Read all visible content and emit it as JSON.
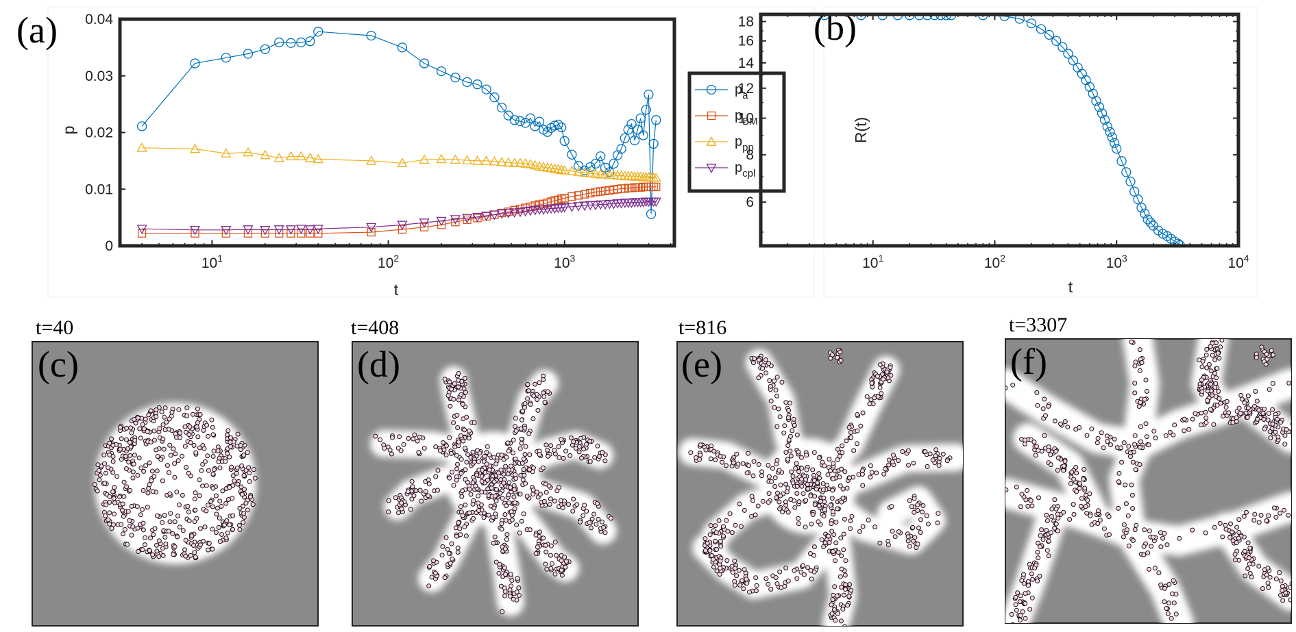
{
  "panel_labels": [
    "(a)",
    "(b)",
    "(c)",
    "(d)",
    "(e)",
    "(f)"
  ],
  "snapshots": [
    {
      "label": "t=40",
      "type": "blob"
    },
    {
      "label": "t=408",
      "type": "arms"
    },
    {
      "label": "t=816",
      "type": "network"
    },
    {
      "label": "t=3307",
      "type": "coarsened"
    }
  ],
  "colors": {
    "p_a": "#0072BD",
    "p_BM": "#D95319",
    "p_pp": "#EDB120",
    "p_cpl": "#7E2F8E",
    "background_gray": "#8a8a8a",
    "particle_fill": "#f3d6e4"
  },
  "chart_data": [
    {
      "type": "line",
      "id": "a",
      "xscale": "log",
      "xlim": [
        3,
        4200
      ],
      "ylim": [
        0,
        0.04
      ],
      "xlabel": "t",
      "ylabel": "p",
      "xtick_labels": [
        {
          "base": "10",
          "exp": "1"
        },
        {
          "base": "10",
          "exp": "2"
        },
        {
          "base": "10",
          "exp": "3"
        }
      ],
      "ytick_labels": [
        "0",
        "0.01",
        "0.02",
        "0.03",
        "0.04"
      ],
      "yticks": [
        0,
        0.01,
        0.02,
        0.03,
        0.04
      ],
      "legend_position": "outside-right",
      "legend": [
        {
          "base": "p",
          "sub": "a"
        },
        {
          "base": "p",
          "sub": "BM"
        },
        {
          "base": "p",
          "sub": "pp"
        },
        {
          "base": "p",
          "sub": "cpl"
        }
      ],
      "series": [
        {
          "name": "p_a",
          "marker": "circle",
          "x": [
            4,
            8,
            12,
            16,
            20,
            24,
            28,
            32,
            36,
            40,
            80,
            120,
            160,
            200,
            240,
            280,
            320,
            360,
            400,
            440,
            480,
            520,
            560,
            600,
            640,
            680,
            720,
            760,
            800,
            840,
            880,
            920,
            960,
            1000,
            1100,
            1200,
            1300,
            1400,
            1500,
            1600,
            1700,
            1800,
            1900,
            2000,
            2100,
            2200,
            2300,
            2400,
            2500,
            2600,
            2700,
            2800,
            2900,
            3000,
            3100,
            3200,
            3307
          ],
          "y": [
            0.0211,
            0.0322,
            0.0332,
            0.0339,
            0.0347,
            0.0359,
            0.0358,
            0.0359,
            0.0361,
            0.0378,
            0.0371,
            0.035,
            0.0322,
            0.0308,
            0.0297,
            0.0289,
            0.0285,
            0.0276,
            0.0262,
            0.0244,
            0.023,
            0.0222,
            0.022,
            0.0217,
            0.0225,
            0.0211,
            0.0219,
            0.0205,
            0.0201,
            0.0208,
            0.0212,
            0.0214,
            0.0209,
            0.0185,
            0.0161,
            0.0141,
            0.0133,
            0.0139,
            0.0145,
            0.0158,
            0.0138,
            0.013,
            0.0145,
            0.016,
            0.0171,
            0.019,
            0.0205,
            0.0215,
            0.0186,
            0.0205,
            0.0225,
            0.0195,
            0.024,
            0.0267,
            0.0056,
            0.018,
            0.0222
          ]
        },
        {
          "name": "p_BM",
          "marker": "square",
          "x": [
            4,
            8,
            12,
            16,
            20,
            24,
            28,
            32,
            36,
            40,
            80,
            120,
            160,
            200,
            240,
            280,
            320,
            360,
            400,
            440,
            480,
            520,
            560,
            600,
            640,
            680,
            720,
            760,
            800,
            840,
            880,
            920,
            960,
            1000,
            1100,
            1200,
            1300,
            1400,
            1500,
            1600,
            1700,
            1800,
            1900,
            2000,
            2100,
            2200,
            2300,
            2400,
            2500,
            2600,
            2700,
            2800,
            2900,
            3000,
            3100,
            3200,
            3307
          ],
          "y": [
            0.0022,
            0.0022,
            0.0022,
            0.0022,
            0.0022,
            0.0022,
            0.0022,
            0.0022,
            0.0022,
            0.0022,
            0.0024,
            0.0029,
            0.0033,
            0.0037,
            0.0042,
            0.0046,
            0.0049,
            0.0052,
            0.0055,
            0.0058,
            0.006,
            0.0063,
            0.0065,
            0.0067,
            0.0069,
            0.0071,
            0.0073,
            0.0074,
            0.0076,
            0.0078,
            0.008,
            0.0081,
            0.0083,
            0.0084,
            0.0087,
            0.0089,
            0.0091,
            0.0093,
            0.0095,
            0.0096,
            0.0097,
            0.0098,
            0.0099,
            0.01,
            0.0101,
            0.0101,
            0.0102,
            0.0102,
            0.0103,
            0.0103,
            0.0103,
            0.0104,
            0.0104,
            0.0104,
            0.0104,
            0.0104,
            0.0104
          ]
        },
        {
          "name": "p_pp",
          "marker": "triangle-up",
          "x": [
            4,
            8,
            12,
            16,
            20,
            24,
            28,
            32,
            36,
            40,
            80,
            120,
            160,
            200,
            240,
            280,
            320,
            360,
            400,
            440,
            480,
            520,
            560,
            600,
            640,
            680,
            720,
            760,
            800,
            840,
            880,
            920,
            960,
            1000,
            1100,
            1200,
            1300,
            1400,
            1500,
            1600,
            1700,
            1800,
            1900,
            2000,
            2100,
            2200,
            2300,
            2400,
            2500,
            2600,
            2700,
            2800,
            2900,
            3000,
            3100,
            3200,
            3307
          ],
          "y": [
            0.0173,
            0.0171,
            0.0163,
            0.0165,
            0.016,
            0.0155,
            0.0158,
            0.0158,
            0.0155,
            0.0153,
            0.015,
            0.0146,
            0.0152,
            0.0153,
            0.0152,
            0.0151,
            0.015,
            0.015,
            0.0149,
            0.0148,
            0.0147,
            0.0146,
            0.0146,
            0.0145,
            0.0144,
            0.0142,
            0.014,
            0.0139,
            0.0138,
            0.0137,
            0.0136,
            0.0135,
            0.0134,
            0.0133,
            0.0132,
            0.013,
            0.0129,
            0.0128,
            0.0127,
            0.0126,
            0.0126,
            0.0125,
            0.0125,
            0.0124,
            0.0124,
            0.0123,
            0.0123,
            0.0123,
            0.0122,
            0.0122,
            0.0122,
            0.0121,
            0.0121,
            0.0121,
            0.012,
            0.012,
            0.012
          ]
        },
        {
          "name": "p_cpl",
          "marker": "triangle-down",
          "x": [
            4,
            8,
            12,
            16,
            20,
            24,
            28,
            32,
            36,
            40,
            80,
            120,
            160,
            200,
            240,
            280,
            320,
            360,
            400,
            440,
            480,
            520,
            560,
            600,
            640,
            680,
            720,
            760,
            800,
            840,
            880,
            920,
            960,
            1000,
            1100,
            1200,
            1300,
            1400,
            1500,
            1600,
            1700,
            1800,
            1900,
            2000,
            2100,
            2200,
            2300,
            2400,
            2500,
            2600,
            2700,
            2800,
            2900,
            3000,
            3100,
            3200,
            3307
          ],
          "y": [
            0.003,
            0.0028,
            0.0028,
            0.0029,
            0.0028,
            0.0029,
            0.0029,
            0.003,
            0.0029,
            0.003,
            0.0033,
            0.0037,
            0.0041,
            0.0044,
            0.0047,
            0.0049,
            0.0051,
            0.0053,
            0.0055,
            0.0057,
            0.0058,
            0.0059,
            0.006,
            0.0061,
            0.0062,
            0.0063,
            0.0064,
            0.0064,
            0.0065,
            0.0066,
            0.0066,
            0.0067,
            0.0067,
            0.0068,
            0.0069,
            0.007,
            0.0071,
            0.0072,
            0.0072,
            0.0073,
            0.0073,
            0.0074,
            0.0074,
            0.0075,
            0.0075,
            0.0076,
            0.0076,
            0.0076,
            0.0077,
            0.0077,
            0.0077,
            0.0077,
            0.0078,
            0.0078,
            0.0078,
            0.0078,
            0.0078
          ]
        }
      ]
    },
    {
      "type": "line",
      "id": "b",
      "xscale": "log",
      "yscale": "log",
      "xlim": [
        1.2,
        10000
      ],
      "ylim": [
        4.6,
        18.8
      ],
      "xlabel": "t",
      "ylabel": "R(t)",
      "xtick_labels": [
        {
          "base": "10",
          "exp": "1"
        },
        {
          "base": "10",
          "exp": "2"
        },
        {
          "base": "10",
          "exp": "3"
        },
        {
          "base": "10",
          "exp": "4"
        }
      ],
      "ytick_labels": [
        "6",
        "8",
        "10",
        "12",
        "14",
        "16",
        "18"
      ],
      "yticks": [
        6,
        8,
        10,
        12,
        14,
        16,
        18
      ],
      "series": [
        {
          "name": "R",
          "marker": "circle",
          "x": [
            4,
            8,
            12,
            16,
            20,
            24,
            28,
            32,
            36,
            40,
            44,
            80,
            120,
            160,
            200,
            240,
            280,
            320,
            360,
            400,
            440,
            480,
            520,
            560,
            600,
            640,
            680,
            720,
            760,
            800,
            840,
            880,
            920,
            960,
            1000,
            1100,
            1200,
            1300,
            1400,
            1500,
            1600,
            1700,
            1800,
            1900,
            2000,
            2200,
            2400,
            2600,
            2800,
            3000,
            3200,
            3307
          ],
          "y": [
            18.7,
            18.7,
            18.7,
            18.7,
            18.7,
            18.7,
            18.7,
            18.7,
            18.7,
            18.7,
            18.7,
            18.7,
            18.6,
            18.3,
            17.8,
            17.2,
            16.6,
            16.0,
            15.4,
            14.8,
            14.2,
            13.6,
            13.1,
            12.6,
            12.1,
            11.6,
            11.1,
            10.7,
            10.3,
            9.9,
            9.5,
            9.2,
            8.9,
            8.6,
            8.3,
            7.7,
            7.2,
            6.8,
            6.4,
            6.1,
            5.8,
            5.6,
            5.4,
            5.3,
            5.2,
            5.05,
            4.95,
            4.88,
            4.8,
            4.72,
            4.66,
            4.62
          ]
        }
      ]
    }
  ]
}
